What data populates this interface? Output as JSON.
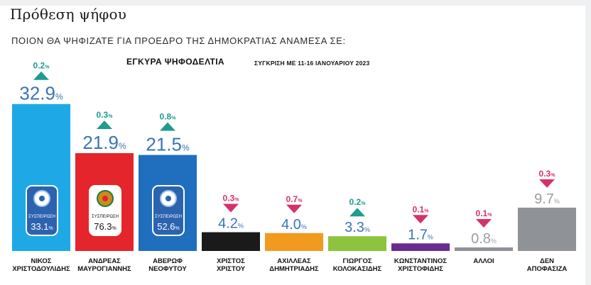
{
  "page": {
    "heading": "Πρόθεση ψήφου",
    "question": "ΠΟΙΟΝ ΘΑ ΨΗΦΙΖΑΤΕ ΓΙΑ ΠΡΟΕΔΡΟ ΤΗΣ ΔΗΜΟΚΡΑΤΙΑΣ ΑΝΑΜΕΣΑ ΣΕ:"
  },
  "chart_data": {
    "type": "bar",
    "title": "ΕΓΚΥΡΑ ΨΗΦΟΔΕΛΤΙΑ",
    "subtitle": "ΣΥΓΚΡΙΣΗ ΜΕ 11-16 ΙΑΝΟΥΑΡΙΟΥ 2023",
    "unit": "%",
    "ylim": [
      0,
      35
    ],
    "grid": false,
    "legend": "none",
    "categories": [
      [
        "ΝΙΚΟΣ",
        "ΧΡΙΣΤΟΔΟΥΛΙΔΗΣ"
      ],
      [
        "ΑΝΔΡΕΑΣ",
        "ΜΑΥΡΟΓΙΑΝΝΗΣ"
      ],
      [
        "ΑΒΕΡΩΦ",
        "ΝΕΟΦΥΤΟΥ"
      ],
      [
        "ΧΡΙΣΤΟΣ",
        "ΧΡΙΣΤΟΥ"
      ],
      [
        "ΑΧΙΛΛΕΑΣ",
        "ΔΗΜΗΤΡΙΑΔΗΣ"
      ],
      [
        "ΓΙΩΡΓΟΣ",
        "ΚΟΛΟΚΑΣΙΔΗΣ"
      ],
      [
        "ΚΩΝΣΤΑΝΤΙΝΟΣ",
        "ΧΡΙΣΤΟΦΙΔΗΣ"
      ],
      [
        "ΑΛΛΟΙ"
      ],
      [
        "ΔΕΝ",
        "ΑΠΟΦΑΣΙΖΑ"
      ]
    ],
    "values": [
      32.9,
      21.9,
      21.5,
      4.2,
      4.0,
      3.3,
      1.7,
      0.8,
      9.7
    ],
    "value_labels": [
      "32.9",
      "21.9",
      "21.5",
      "4.2",
      "4.0",
      "3.3",
      "1.7",
      "0.8",
      "9.7"
    ],
    "change": [
      0.2,
      0.3,
      0.8,
      0.3,
      0.7,
      0.2,
      0.1,
      0.1,
      0.3
    ],
    "change_labels": [
      "0.2",
      "0.3",
      "0.8",
      "0.3",
      "0.7",
      "0.2",
      "0.1",
      "0.1",
      "0.3"
    ],
    "change_direction": [
      "up",
      "up",
      "up",
      "down",
      "down",
      "up",
      "down",
      "down",
      "down"
    ],
    "bar_colors": [
      "#1ea9e6",
      "#e4252b",
      "#1f6fbe",
      "#1a1a1a",
      "#f29a1f",
      "#8cc43d",
      "#6a2a92",
      "#8f9296",
      "#8f9296"
    ],
    "value_colors": [
      "#3a74b5",
      "#3a74b5",
      "#3a74b5",
      "#3a74b5",
      "#3a74b5",
      "#3a74b5",
      "#3a74b5",
      "#9a9da1",
      "#9a9da1"
    ],
    "up_color": "#1f9b8f",
    "down_color": "#d6316b",
    "badges": [
      {
        "bar": 0,
        "label": "ΣΥΣΠΕΙΡΩΣΗ",
        "value": "33.1",
        "bg": "#2c63b0"
      },
      {
        "bar": 1,
        "label": "ΣΥΣΠΕΙΡΩΣΗ",
        "value": "76.3",
        "bg": "#ffffff"
      },
      {
        "bar": 2,
        "label": "ΣΥΣΠΕΙΡΩΣΗ",
        "value": "52.6",
        "bg": "#2c63b0"
      }
    ]
  }
}
